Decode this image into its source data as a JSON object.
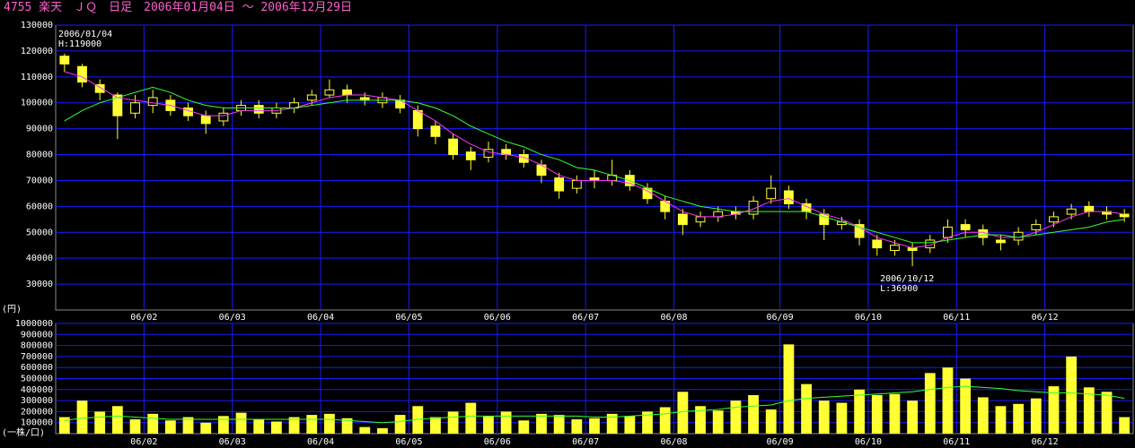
{
  "chart_data": [
    {
      "type": "candlestick",
      "title": "4755 楽天　ＪＱ　日足　2006年01月04日 ～ 2006年12月29日",
      "y_label": "(円)",
      "color": "#ffff33",
      "grid": true,
      "grid_color": "#1a1aff",
      "ylim": [
        20000,
        130000
      ],
      "yticks": [
        30000,
        40000,
        50000,
        60000,
        70000,
        80000,
        90000,
        100000,
        110000,
        120000,
        130000
      ],
      "xticks": [
        {
          "value": 5,
          "label": "06/02"
        },
        {
          "value": 10,
          "label": "06/03"
        },
        {
          "value": 15,
          "label": "06/04"
        },
        {
          "value": 20,
          "label": "06/05"
        },
        {
          "value": 25,
          "label": "06/06"
        },
        {
          "value": 30,
          "label": "06/07"
        },
        {
          "value": 35,
          "label": "06/08"
        },
        {
          "value": 41,
          "label": "06/09"
        },
        {
          "value": 46,
          "label": "06/10"
        },
        {
          "value": 51,
          "label": "06/11"
        },
        {
          "value": 56,
          "label": "06/12"
        }
      ],
      "open": [
        118000,
        114000,
        107000,
        103000,
        96000,
        99000,
        101000,
        98000,
        95000,
        93000,
        97000,
        99000,
        96000,
        98000,
        101000,
        103000,
        105000,
        102000,
        100000,
        101000,
        97000,
        91000,
        86000,
        81000,
        79000,
        82000,
        80000,
        76000,
        71000,
        67000,
        71000,
        70000,
        72000,
        67000,
        62000,
        57000,
        54000,
        56000,
        58000,
        57000,
        63000,
        66000,
        61000,
        57000,
        53000,
        53000,
        47000,
        43000,
        44000,
        44000,
        48000,
        53000,
        51000,
        47000,
        47000,
        51000,
        54000,
        57000,
        60000,
        58000,
        57000
      ],
      "high": [
        119000,
        115000,
        109000,
        104000,
        103000,
        105000,
        103000,
        100000,
        97000,
        98000,
        101000,
        101000,
        100000,
        102000,
        105000,
        109000,
        107000,
        104000,
        104000,
        103000,
        99000,
        93000,
        88000,
        83000,
        85000,
        84000,
        82000,
        78000,
        73000,
        72000,
        74000,
        78000,
        74000,
        69000,
        64000,
        59000,
        58000,
        60000,
        60000,
        64000,
        72000,
        68000,
        63000,
        59000,
        56000,
        55000,
        49000,
        47000,
        46000,
        49000,
        55000,
        55000,
        53000,
        49000,
        52000,
        55000,
        58000,
        61000,
        62000,
        60000,
        59000
      ],
      "low": [
        112000,
        106000,
        101000,
        86000,
        94000,
        96000,
        95000,
        93000,
        88000,
        91000,
        95000,
        94000,
        94000,
        96000,
        99000,
        102000,
        100000,
        99000,
        98000,
        96000,
        87000,
        84000,
        78000,
        74000,
        77000,
        78000,
        75000,
        69000,
        63000,
        65000,
        67000,
        68000,
        66000,
        61000,
        55000,
        49000,
        52000,
        54000,
        55000,
        55000,
        61000,
        59000,
        55000,
        47000,
        51000,
        45000,
        41000,
        41000,
        36900,
        42000,
        46000,
        48000,
        45000,
        43000,
        45000,
        49000,
        52000,
        55000,
        56000,
        55000,
        54000
      ],
      "close": [
        115000,
        108000,
        104000,
        95000,
        100000,
        102000,
        97000,
        95000,
        92000,
        96000,
        99000,
        96000,
        98000,
        100000,
        103000,
        105000,
        103000,
        101000,
        102000,
        98000,
        90000,
        87000,
        80000,
        78000,
        82000,
        80000,
        77000,
        72000,
        66000,
        70000,
        70000,
        72000,
        68000,
        63000,
        58000,
        53000,
        56000,
        58000,
        57000,
        62000,
        67000,
        61000,
        58000,
        53000,
        54000,
        48000,
        44000,
        45000,
        43000,
        47000,
        52000,
        51000,
        48000,
        46000,
        50000,
        53000,
        56000,
        59000,
        58000,
        57000,
        56000
      ],
      "series": [
        {
          "color": "#ff33ff",
          "values": [
            112000,
            110000,
            106000,
            102000,
            101000,
            100000,
            99000,
            97000,
            95000,
            95000,
            97000,
            97000,
            97000,
            98000,
            100000,
            102000,
            103000,
            103000,
            102000,
            101000,
            97000,
            93000,
            88000,
            84000,
            81000,
            80000,
            79000,
            76000,
            72000,
            70000,
            70000,
            70000,
            69000,
            66000,
            62000,
            58000,
            56000,
            56000,
            57000,
            59000,
            62000,
            63000,
            60000,
            57000,
            55000,
            52000,
            48000,
            46000,
            44000,
            45000,
            48000,
            50000,
            50000,
            48000,
            48000,
            50000,
            53000,
            56000,
            58000,
            58000,
            57000
          ]
        },
        {
          "color": "#33ff33",
          "values": [
            93000,
            97000,
            100000,
            102000,
            104000,
            106000,
            104000,
            101000,
            99000,
            98000,
            98000,
            98000,
            98000,
            98000,
            99000,
            100000,
            101000,
            101000,
            101000,
            101000,
            100000,
            98000,
            95000,
            91000,
            88000,
            85000,
            83000,
            80000,
            78000,
            75000,
            74000,
            72000,
            70000,
            67000,
            64000,
            62000,
            60000,
            59000,
            58000,
            58000,
            58000,
            58000,
            58000,
            56000,
            54000,
            52000,
            50000,
            48000,
            46000,
            46000,
            47000,
            48000,
            49000,
            49000,
            48000,
            49000,
            50000,
            51000,
            52000,
            54000,
            55000
          ]
        }
      ],
      "annotations": [
        {
          "index": 0,
          "lines": [
            "2006/01/04",
            "H:119000"
          ]
        },
        {
          "index": 48,
          "lines": [
            "2006/10/12",
            "L:36900"
          ]
        }
      ]
    },
    {
      "type": "bar",
      "y_label": "(一株/口)",
      "color": "#ffff33",
      "grid": true,
      "grid_color": "#1a1aff",
      "ylim": [
        0,
        1000000
      ],
      "yticks": [
        100000,
        200000,
        300000,
        400000,
        500000,
        600000,
        700000,
        800000,
        900000,
        1000000
      ],
      "xticks": [
        {
          "value": 5,
          "label": "06/02"
        },
        {
          "value": 10,
          "label": "06/03"
        },
        {
          "value": 15,
          "label": "06/04"
        },
        {
          "value": 20,
          "label": "06/05"
        },
        {
          "value": 25,
          "label": "06/06"
        },
        {
          "value": 30,
          "label": "06/07"
        },
        {
          "value": 35,
          "label": "06/08"
        },
        {
          "value": 41,
          "label": "06/09"
        },
        {
          "value": 46,
          "label": "06/10"
        },
        {
          "value": 51,
          "label": "06/11"
        },
        {
          "value": 56,
          "label": "06/12"
        }
      ],
      "values": [
        150000,
        300000,
        200000,
        250000,
        130000,
        180000,
        120000,
        150000,
        100000,
        160000,
        190000,
        130000,
        110000,
        150000,
        170000,
        180000,
        140000,
        60000,
        50000,
        170000,
        250000,
        150000,
        200000,
        280000,
        160000,
        200000,
        120000,
        180000,
        170000,
        130000,
        140000,
        180000,
        160000,
        200000,
        240000,
        380000,
        250000,
        210000,
        300000,
        350000,
        220000,
        810000,
        450000,
        300000,
        280000,
        400000,
        350000,
        360000,
        300000,
        550000,
        600000,
        500000,
        330000,
        250000,
        270000,
        320000,
        430000,
        700000,
        420000,
        380000,
        150000
      ],
      "series": [
        {
          "color": "#33ff33",
          "values": [
            120000,
            140000,
            150000,
            160000,
            150000,
            140000,
            130000,
            130000,
            130000,
            130000,
            130000,
            130000,
            130000,
            130000,
            130000,
            130000,
            120000,
            110000,
            100000,
            110000,
            130000,
            140000,
            150000,
            160000,
            160000,
            160000,
            160000,
            160000,
            160000,
            160000,
            150000,
            150000,
            160000,
            170000,
            180000,
            200000,
            210000,
            220000,
            240000,
            250000,
            260000,
            300000,
            320000,
            330000,
            340000,
            350000,
            360000,
            370000,
            380000,
            400000,
            420000,
            430000,
            420000,
            410000,
            390000,
            380000,
            370000,
            370000,
            360000,
            350000,
            320000
          ]
        }
      ]
    }
  ]
}
